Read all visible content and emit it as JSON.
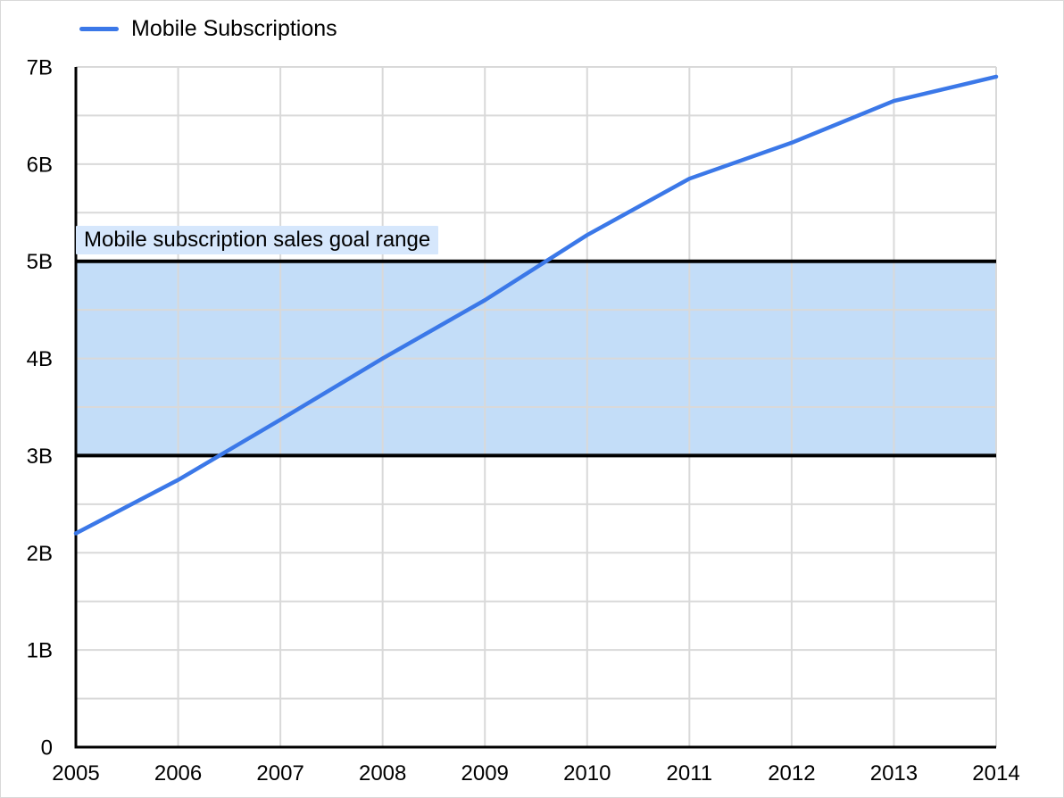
{
  "legend": {
    "label": "Mobile Subscriptions"
  },
  "chart_data": {
    "type": "line",
    "x": [
      2005,
      2006,
      2007,
      2008,
      2009,
      2010,
      2011,
      2012,
      2013,
      2014
    ],
    "x_tick_labels": [
      "2005",
      "2006",
      "2007",
      "2008",
      "2009",
      "2010",
      "2011",
      "2012",
      "2013",
      "2014"
    ],
    "series": [
      {
        "name": "Mobile Subscriptions",
        "color": "#3b78e8",
        "values": [
          2.2,
          2.75,
          3.37,
          4.0,
          4.6,
          5.27,
          5.85,
          6.22,
          6.65,
          6.9
        ]
      }
    ],
    "ylim": [
      0,
      7
    ],
    "y_ticks": [
      {
        "value": 0,
        "label": "0"
      },
      {
        "value": 1,
        "label": "1B"
      },
      {
        "value": 2,
        "label": "2B"
      },
      {
        "value": 3,
        "label": "3B"
      },
      {
        "value": 4,
        "label": "4B"
      },
      {
        "value": 5,
        "label": "5B"
      },
      {
        "value": 6,
        "label": "6B"
      },
      {
        "value": 7,
        "label": "7B"
      }
    ],
    "y_minor_step": 0.5,
    "grid": true,
    "legend_position": "top-left",
    "band": {
      "label": "Mobile subscription sales goal range",
      "from": 3,
      "to": 5
    }
  },
  "colors": {
    "series_line": "#3b78e8",
    "band_fill": "#c3ddf8",
    "band_border": "#000000",
    "band_label_bg": "#d6e7fc",
    "gridline": "#d9d9d9",
    "axis": "#000000",
    "text": "#000000",
    "card_border": "#d9d9d9"
  }
}
